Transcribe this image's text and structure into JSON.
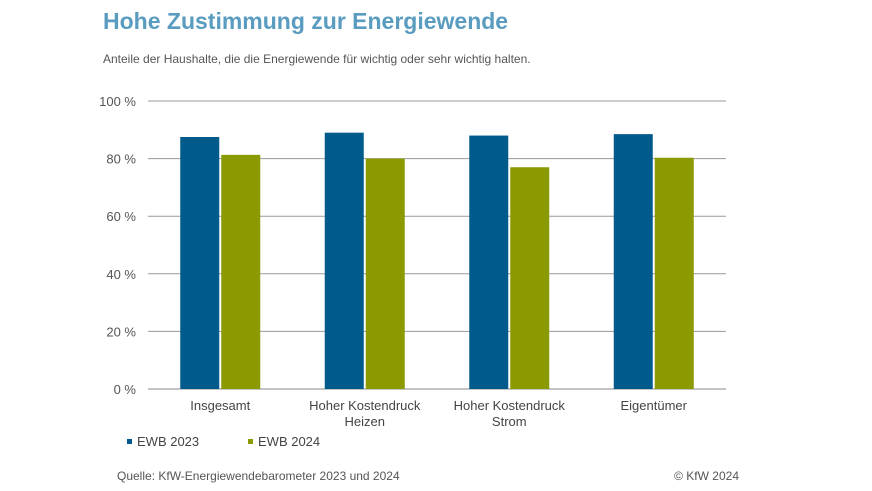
{
  "header": {
    "title": "Hohe Zustimmung zur Energiewende",
    "subtitle": "Anteile der Haushalte, die die Energiewende für wichtig oder sehr wichtig halten."
  },
  "footer": {
    "source": "Quelle: KfW-Energiewendebarometer 2023 und 2024",
    "copyright": "© KfW 2024"
  },
  "chart_data": {
    "type": "bar",
    "title": "Hohe Zustimmung zur Energiewende",
    "subtitle": "Anteile der Haushalte, die die Energiewende für wichtig oder sehr wichtig halten.",
    "categories": [
      [
        "Insgesamt"
      ],
      [
        "Hoher Kostendruck",
        "Heizen"
      ],
      [
        "Hoher Kostendruck",
        "Strom"
      ],
      [
        "Eigentümer"
      ]
    ],
    "series": [
      {
        "name": "EWB 2023",
        "color": "#005a8c",
        "values": [
          87.5,
          89,
          88,
          88.5
        ]
      },
      {
        "name": "EWB 2024",
        "color": "#8a9a00",
        "values": [
          81.3,
          80,
          77,
          80.3
        ]
      }
    ],
    "xlabel": "",
    "ylabel": "",
    "ylim": [
      0,
      100
    ],
    "yticks": [
      0,
      20,
      40,
      60,
      80,
      100
    ],
    "ytick_labels": [
      "0 %",
      "20 %",
      "40 %",
      "60 %",
      "80 %",
      "100 %"
    ],
    "grid": true,
    "legend_position": "bottom-left"
  }
}
